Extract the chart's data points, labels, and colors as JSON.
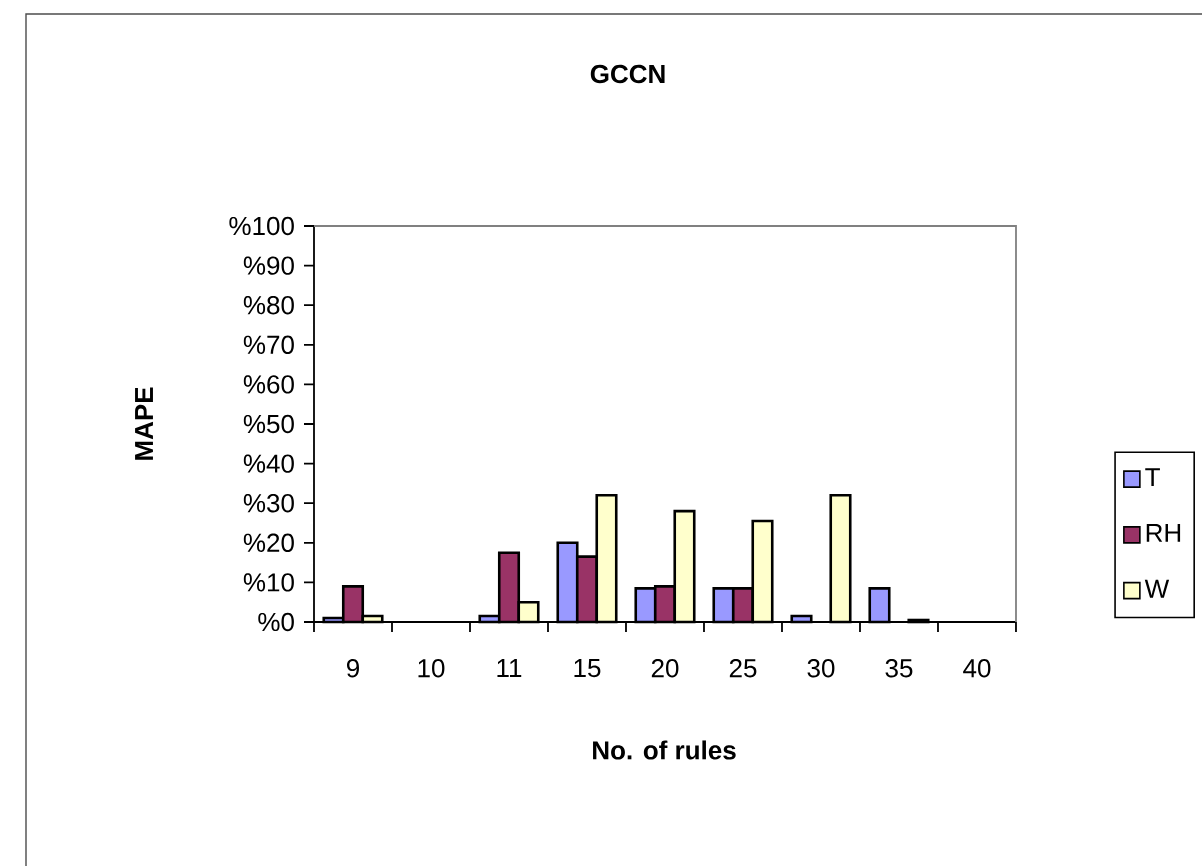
{
  "chart_data": {
    "type": "bar",
    "title": "GCCN",
    "xlabel": "No. of rules",
    "ylabel": "MAPE",
    "categories": [
      "9",
      "10",
      "11",
      "15",
      "20",
      "25",
      "30",
      "35",
      "40"
    ],
    "series": [
      {
        "name": "T",
        "color": "#9999ff",
        "values": [
          1,
          null,
          1.5,
          20,
          8.5,
          8.5,
          1.5,
          8.5,
          null
        ]
      },
      {
        "name": "RH",
        "color": "#993366",
        "values": [
          9,
          null,
          17.5,
          16.5,
          9,
          8.5,
          null,
          null,
          null
        ]
      },
      {
        "name": "W",
        "color": "#ffffcc",
        "values": [
          1.5,
          null,
          5,
          32,
          28,
          25.5,
          32,
          0.5,
          null
        ]
      }
    ],
    "ylim": [
      0,
      100
    ],
    "yticks": [
      {
        "value": 0,
        "label": "%0"
      },
      {
        "value": 10,
        "label": "%10"
      },
      {
        "value": 20,
        "label": "%20"
      },
      {
        "value": 30,
        "label": "%30"
      },
      {
        "value": 40,
        "label": "%40"
      },
      {
        "value": 50,
        "label": "%50"
      },
      {
        "value": 60,
        "label": "%60"
      },
      {
        "value": 70,
        "label": "%70"
      },
      {
        "value": 80,
        "label": "%80"
      },
      {
        "value": 90,
        "label": "%90"
      },
      {
        "value": 100,
        "label": "%100"
      }
    ],
    "legend": "right"
  }
}
